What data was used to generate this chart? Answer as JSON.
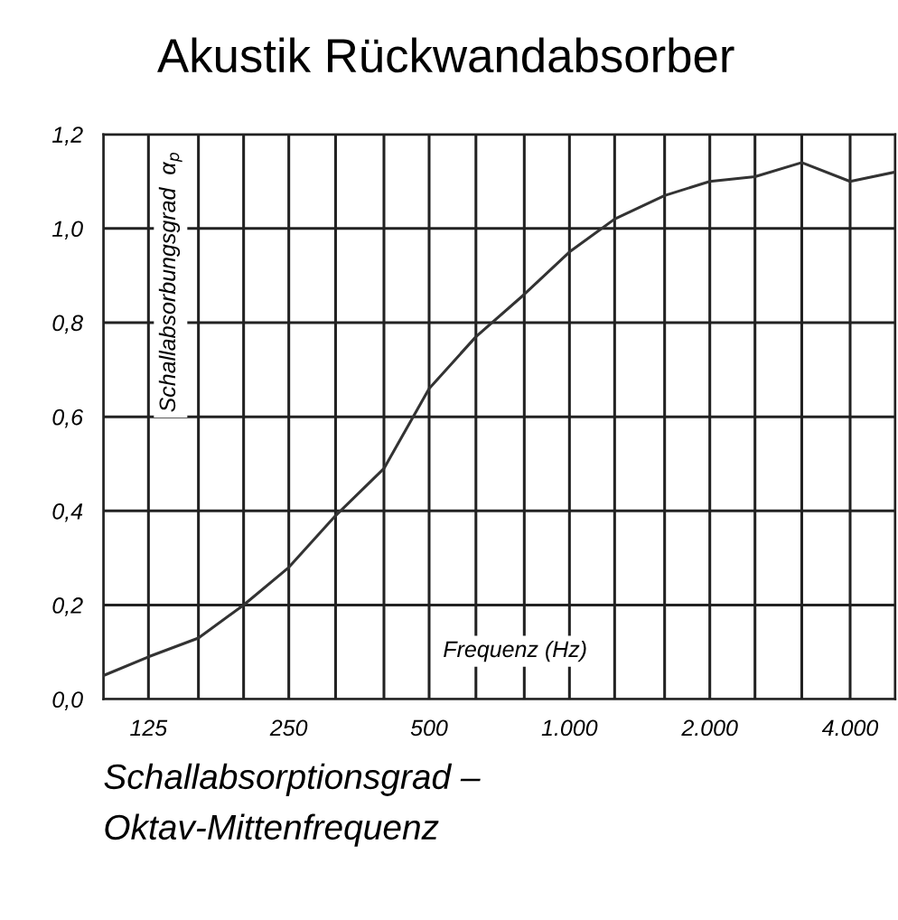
{
  "chart_data": {
    "type": "line",
    "title": "Akustik Rückwandabsorber",
    "xlabel": "Frequenz (Hz)",
    "ylabel": "Schallabsorbungsgrad  α$_{p}$",
    "annotations": [
      "Schallabsorptionsgrad –\nOktav-Mittenfrequenz"
    ],
    "log": "x",
    "grid": true,
    "marker": "none",
    "line_style": "solid",
    "xlim": [
      100,
      5000
    ],
    "ylim": [
      0,
      1.2
    ],
    "xticks": [
      {
        "value": 100,
        "label": null
      },
      {
        "value": 125,
        "label": "125"
      },
      {
        "value": 160,
        "label": null
      },
      {
        "value": 200,
        "label": null
      },
      {
        "value": 250,
        "label": "250"
      },
      {
        "value": 315,
        "label": null
      },
      {
        "value": 400,
        "label": null
      },
      {
        "value": 500,
        "label": "500"
      },
      {
        "value": 630,
        "label": null
      },
      {
        "value": 800,
        "label": null
      },
      {
        "value": 1000,
        "label": "1.000"
      },
      {
        "value": 1250,
        "label": null
      },
      {
        "value": 1600,
        "label": null
      },
      {
        "value": 2000,
        "label": "2.000"
      },
      {
        "value": 2500,
        "label": null
      },
      {
        "value": 3150,
        "label": null
      },
      {
        "value": 4000,
        "label": "4.000"
      },
      {
        "value": 5000,
        "label": null
      }
    ],
    "yticks": [
      {
        "value": 0,
        "label": "0,0"
      },
      {
        "value": 0.2,
        "label": "0,2"
      },
      {
        "value": 0.4,
        "label": "0,4"
      },
      {
        "value": 0.6,
        "label": "0,6"
      },
      {
        "value": 0.8,
        "label": "0,8"
      },
      {
        "value": 1.0,
        "label": "1,0"
      },
      {
        "value": 1.2,
        "label": "1,2"
      }
    ],
    "x": [
      100,
      125,
      160,
      200,
      250,
      315,
      400,
      500,
      630,
      800,
      1000,
      1250,
      1600,
      2000,
      2500,
      3150,
      4000,
      5000
    ],
    "series": [
      {
        "color": "#333333",
        "values": [
          0.05,
          0.09,
          0.13,
          0.2,
          0.28,
          0.39,
          0.49,
          0.66,
          0.77,
          0.86,
          0.95,
          1.02,
          1.07,
          1.1,
          1.11,
          1.14,
          1.1,
          1.12
        ]
      }
    ]
  }
}
